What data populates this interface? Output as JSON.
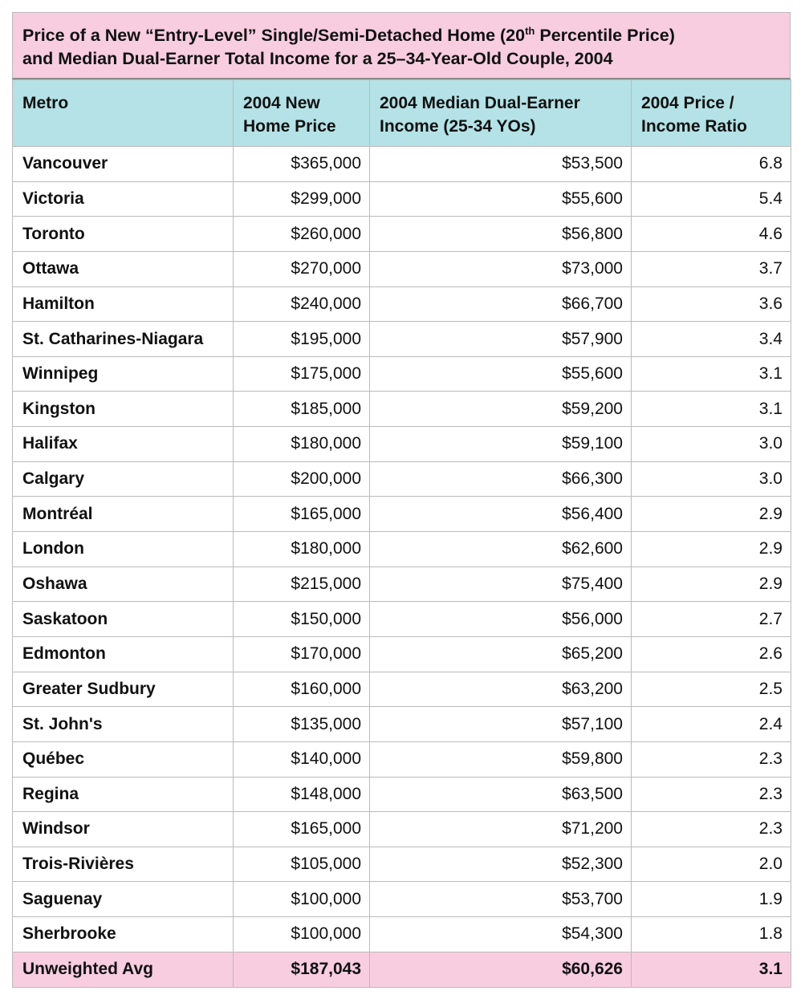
{
  "header": {
    "title": [
      "Price of a New “Entry-Level” Single/Semi-Detached Home (20",
      "th",
      " Percentile Price)",
      "and Median Dual-Earner Total Income for a 25–34-Year-Old Couple, 2004"
    ]
  },
  "table": {
    "columns": [
      [
        "Metro"
      ],
      [
        "2004 New",
        "Home Price"
      ],
      [
        "2004 Median Dual-Earner",
        "Income (25-34 YOs)"
      ],
      [
        "2004 Price /",
        "Income Ratio"
      ]
    ],
    "rows": [
      [
        "Vancouver",
        "$365,000",
        "$53,500",
        "6.8"
      ],
      [
        "Victoria",
        "$299,000",
        "$55,600",
        "5.4"
      ],
      [
        "Toronto",
        "$260,000",
        "$56,800",
        "4.6"
      ],
      [
        "Ottawa",
        "$270,000",
        "$73,000",
        "3.7"
      ],
      [
        "Hamilton",
        "$240,000",
        "$66,700",
        "3.6"
      ],
      [
        "St. Catharines-Niagara",
        "$195,000",
        "$57,900",
        "3.4"
      ],
      [
        "Winnipeg",
        "$175,000",
        "$55,600",
        "3.1"
      ],
      [
        "Kingston",
        "$185,000",
        "$59,200",
        "3.1"
      ],
      [
        "Halifax",
        "$180,000",
        "$59,100",
        "3.0"
      ],
      [
        "Calgary",
        "$200,000",
        "$66,300",
        "3.0"
      ],
      [
        "Montréal",
        "$165,000",
        "$56,400",
        "2.9"
      ],
      [
        "London",
        "$180,000",
        "$62,600",
        "2.9"
      ],
      [
        "Oshawa",
        "$215,000",
        "$75,400",
        "2.9"
      ],
      [
        "Saskatoon",
        "$150,000",
        "$56,000",
        "2.7"
      ],
      [
        "Edmonton",
        "$170,000",
        "$65,200",
        "2.6"
      ],
      [
        "Greater Sudbury",
        "$160,000",
        "$63,200",
        "2.5"
      ],
      [
        "St. John's",
        "$135,000",
        "$57,100",
        "2.4"
      ],
      [
        "Québec",
        "$140,000",
        "$59,800",
        "2.3"
      ],
      [
        "Regina",
        "$148,000",
        "$63,500",
        "2.3"
      ],
      [
        "Windsor",
        "$165,000",
        "$71,200",
        "2.3"
      ],
      [
        "Trois-Rivières",
        "$105,000",
        "$52,300",
        "2.0"
      ],
      [
        "Saguenay",
        "$100,000",
        "$53,700",
        "1.9"
      ],
      [
        "Sherbrooke",
        "$100,000",
        "$54,300",
        "1.8"
      ]
    ],
    "footer": [
      "Unweighted Avg",
      "$187,043",
      "$60,626",
      "3.1"
    ]
  }
}
